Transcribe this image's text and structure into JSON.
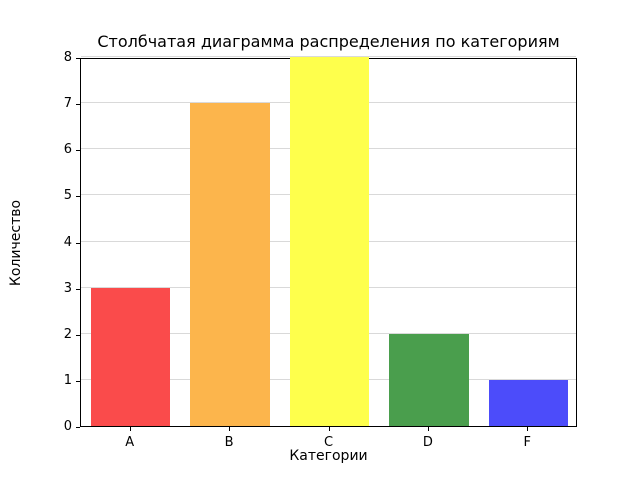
{
  "chart_data": {
    "type": "bar",
    "title": "Столбчатая диаграмма распределения по категориям",
    "xlabel": "Категории",
    "ylabel": "Количество",
    "categories": [
      "A",
      "B",
      "C",
      "D",
      "F"
    ],
    "values": [
      3,
      7,
      8,
      2,
      1
    ],
    "bar_colors": [
      "#fa4b4b",
      "#fcb54c",
      "#feff4c",
      "#4a9e4d",
      "#4c4cfa"
    ],
    "ylim": [
      0,
      8
    ],
    "yticks": [
      0,
      1,
      2,
      3,
      4,
      5,
      6,
      7,
      8
    ],
    "grid": "horizontal",
    "grid_color": "#d9d9d9",
    "legend": "none"
  }
}
